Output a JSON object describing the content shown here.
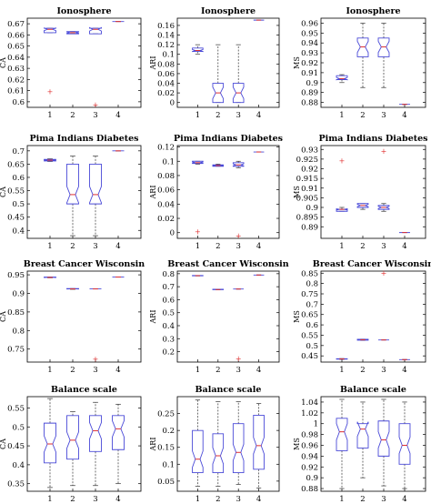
{
  "chart_data": [
    {
      "type": "box",
      "title": "Ionosphere",
      "ylabel": "CA",
      "categories": [
        "1",
        "2",
        "3",
        "4"
      ],
      "ylim": [
        0.595,
        0.675
      ],
      "yticks": [
        0.6,
        0.61,
        0.62,
        0.63,
        0.64,
        0.65,
        0.66,
        0.67
      ],
      "ytick_labels": [
        "0.6",
        "0.61",
        "0.62",
        "0.63",
        "0.64",
        "0.65",
        "0.66",
        "0.67"
      ],
      "boxes": [
        {
          "whislo": 0.662,
          "q1": 0.662,
          "med": 0.665,
          "q3": 0.666,
          "whishi": 0.666,
          "fliers": [
            0.609
          ]
        },
        {
          "whislo": 0.661,
          "q1": 0.661,
          "med": 0.662,
          "q3": 0.663,
          "whishi": 0.663,
          "fliers": []
        },
        {
          "whislo": 0.661,
          "q1": 0.661,
          "med": 0.665,
          "q3": 0.666,
          "whishi": 0.666,
          "fliers": [
            0.597
          ]
        },
        {
          "whislo": 0.672,
          "q1": 0.672,
          "med": 0.672,
          "q3": 0.672,
          "whishi": 0.672,
          "fliers": []
        }
      ]
    },
    {
      "type": "box",
      "title": "Ionosphere",
      "ylabel": "ARI",
      "categories": [
        "1",
        "2",
        "3",
        "4"
      ],
      "ylim": [
        -0.01,
        0.175
      ],
      "yticks": [
        0,
        0.02,
        0.04,
        0.06,
        0.08,
        0.1,
        0.12,
        0.14,
        0.16
      ],
      "ytick_labels": [
        "0",
        "0.02",
        "0.04",
        "0.06",
        "0.08",
        "0.1",
        "0.12",
        "0.14",
        "0.16"
      ],
      "boxes": [
        {
          "whislo": 0.1,
          "q1": 0.106,
          "med": 0.108,
          "q3": 0.113,
          "whishi": 0.12,
          "fliers": []
        },
        {
          "whislo": 0,
          "q1": 0,
          "med": 0.02,
          "q3": 0.04,
          "whishi": 0.12,
          "fliers": []
        },
        {
          "whislo": 0,
          "q1": 0,
          "med": 0.02,
          "q3": 0.04,
          "whishi": 0.12,
          "fliers": []
        },
        {
          "whislo": 0.171,
          "q1": 0.171,
          "med": 0.171,
          "q3": 0.171,
          "whishi": 0.171,
          "fliers": []
        }
      ]
    },
    {
      "type": "box",
      "title": "Ionosphere",
      "ylabel": "MS",
      "categories": [
        "1",
        "2",
        "3",
        "4"
      ],
      "ylim": [
        0.875,
        0.965
      ],
      "yticks": [
        0.88,
        0.89,
        0.9,
        0.91,
        0.92,
        0.93,
        0.94,
        0.95,
        0.96
      ],
      "ytick_labels": [
        "0.88",
        "0.89",
        "0.9",
        "0.91",
        "0.92",
        "0.93",
        "0.94",
        "0.95",
        "0.96"
      ],
      "boxes": [
        {
          "whislo": 0.9,
          "q1": 0.903,
          "med": 0.904,
          "q3": 0.907,
          "whishi": 0.908,
          "fliers": []
        },
        {
          "whislo": 0.895,
          "q1": 0.926,
          "med": 0.936,
          "q3": 0.945,
          "whishi": 0.96,
          "fliers": []
        },
        {
          "whislo": 0.895,
          "q1": 0.926,
          "med": 0.936,
          "q3": 0.945,
          "whishi": 0.96,
          "fliers": []
        },
        {
          "whislo": 0.878,
          "q1": 0.878,
          "med": 0.878,
          "q3": 0.878,
          "whishi": 0.878,
          "fliers": []
        }
      ]
    },
    {
      "type": "box",
      "title": "Pima Indians Diabetes",
      "ylabel": "CA",
      "categories": [
        "1",
        "2",
        "3",
        "4"
      ],
      "ylim": [
        0.37,
        0.72
      ],
      "yticks": [
        0.4,
        0.45,
        0.5,
        0.55,
        0.6,
        0.65,
        0.7
      ],
      "ytick_labels": [
        "0.4",
        "0.45",
        "0.5",
        "0.55",
        "0.6",
        "0.65",
        "0.7"
      ],
      "boxes": [
        {
          "whislo": 0.66,
          "q1": 0.662,
          "med": 0.665,
          "q3": 0.668,
          "whishi": 0.67,
          "fliers": []
        },
        {
          "whislo": 0.38,
          "q1": 0.5,
          "med": 0.535,
          "q3": 0.65,
          "whishi": 0.68,
          "fliers": []
        },
        {
          "whislo": 0.38,
          "q1": 0.5,
          "med": 0.535,
          "q3": 0.65,
          "whishi": 0.68,
          "fliers": []
        },
        {
          "whislo": 0.7,
          "q1": 0.7,
          "med": 0.7,
          "q3": 0.7,
          "whishi": 0.7,
          "fliers": []
        }
      ]
    },
    {
      "type": "box",
      "title": "Pima Indians Diabetes",
      "ylabel": "ARI",
      "categories": [
        "1",
        "2",
        "3",
        "4"
      ],
      "ylim": [
        -0.008,
        0.122
      ],
      "yticks": [
        0,
        0.02,
        0.04,
        0.06,
        0.08,
        0.1,
        0.12
      ],
      "ytick_labels": [
        "0",
        "0.02",
        "0.04",
        "0.06",
        "0.08",
        "0.1",
        "0.12"
      ],
      "boxes": [
        {
          "whislo": 0.096,
          "q1": 0.097,
          "med": 0.098,
          "q3": 0.1,
          "whishi": 0.1,
          "fliers": [
            0.001
          ]
        },
        {
          "whislo": 0.093,
          "q1": 0.093,
          "med": 0.094,
          "q3": 0.095,
          "whishi": 0.096,
          "fliers": []
        },
        {
          "whislo": 0.091,
          "q1": 0.093,
          "med": 0.095,
          "q3": 0.098,
          "whishi": 0.1,
          "fliers": [
            -0.005
          ]
        },
        {
          "whislo": 0.113,
          "q1": 0.113,
          "med": 0.113,
          "q3": 0.113,
          "whishi": 0.113,
          "fliers": []
        }
      ]
    },
    {
      "type": "box",
      "title": "Pima Indians Diabetes",
      "ylabel": "MS",
      "categories": [
        "1",
        "2",
        "3",
        "4"
      ],
      "ylim": [
        0.884,
        0.932
      ],
      "yticks": [
        0.89,
        0.895,
        0.9,
        0.905,
        0.91,
        0.915,
        0.92,
        0.925,
        0.93
      ],
      "ytick_labels": [
        "0.89",
        "0.895",
        "0.9",
        "0.905",
        "0.91",
        "0.915",
        "0.92",
        "0.925",
        "0.93"
      ],
      "boxes": [
        {
          "whislo": 0.898,
          "q1": 0.898,
          "med": 0.899,
          "q3": 0.899,
          "whishi": 0.9,
          "fliers": [
            0.924
          ]
        },
        {
          "whislo": 0.899,
          "q1": 0.9,
          "med": 0.901,
          "q3": 0.902,
          "whishi": 0.902,
          "fliers": []
        },
        {
          "whislo": 0.898,
          "q1": 0.899,
          "med": 0.9,
          "q3": 0.901,
          "whishi": 0.902,
          "fliers": [
            0.929
          ]
        },
        {
          "whislo": 0.887,
          "q1": 0.887,
          "med": 0.887,
          "q3": 0.887,
          "whishi": 0.887,
          "fliers": []
        }
      ]
    },
    {
      "type": "box",
      "title": "Breast Cancer Wisconsin",
      "ylabel": "CA",
      "categories": [
        "1",
        "2",
        "3",
        "4"
      ],
      "ylim": [
        0.715,
        0.96
      ],
      "yticks": [
        0.75,
        0.8,
        0.85,
        0.9,
        0.95
      ],
      "ytick_labels": [
        "0.75",
        "0.8",
        "0.85",
        "0.9",
        "0.95"
      ],
      "boxes": [
        {
          "whislo": 0.942,
          "q1": 0.943,
          "med": 0.943,
          "q3": 0.944,
          "whishi": 0.944,
          "fliers": []
        },
        {
          "whislo": 0.911,
          "q1": 0.912,
          "med": 0.912,
          "q3": 0.913,
          "whishi": 0.913,
          "fliers": []
        },
        {
          "whislo": 0.912,
          "q1": 0.912,
          "med": 0.912,
          "q3": 0.912,
          "whishi": 0.912,
          "fliers": [
            0.722
          ]
        },
        {
          "whislo": 0.944,
          "q1": 0.944,
          "med": 0.944,
          "q3": 0.944,
          "whishi": 0.944,
          "fliers": []
        }
      ]
    },
    {
      "type": "box",
      "title": "Breast Cancer Wisconsin",
      "ylabel": "ARI",
      "categories": [
        "1",
        "2",
        "3",
        "4"
      ],
      "ylim": [
        0.12,
        0.82
      ],
      "yticks": [
        0.2,
        0.3,
        0.4,
        0.5,
        0.6,
        0.7,
        0.8
      ],
      "ytick_labels": [
        "0.2",
        "0.3",
        "0.4",
        "0.5",
        "0.6",
        "0.7",
        "0.8"
      ],
      "boxes": [
        {
          "whislo": 0.783,
          "q1": 0.784,
          "med": 0.785,
          "q3": 0.786,
          "whishi": 0.786,
          "fliers": []
        },
        {
          "whislo": 0.676,
          "q1": 0.677,
          "med": 0.678,
          "q3": 0.68,
          "whishi": 0.681,
          "fliers": []
        },
        {
          "whislo": 0.682,
          "q1": 0.682,
          "med": 0.682,
          "q3": 0.682,
          "whishi": 0.682,
          "fliers": [
            0.145
          ]
        },
        {
          "whislo": 0.79,
          "q1": 0.79,
          "med": 0.79,
          "q3": 0.79,
          "whishi": 0.79,
          "fliers": []
        }
      ]
    },
    {
      "type": "box",
      "title": "Breast Cancer Wisconsin",
      "ylabel": "MS",
      "categories": [
        "1",
        "2",
        "3",
        "4"
      ],
      "ylim": [
        0.42,
        0.86
      ],
      "yticks": [
        0.45,
        0.5,
        0.55,
        0.6,
        0.65,
        0.7,
        0.75,
        0.8,
        0.85
      ],
      "ytick_labels": [
        "0.45",
        "0.5",
        "0.55",
        "0.6",
        "0.65",
        "0.7",
        "0.75",
        "0.8",
        "0.85"
      ],
      "boxes": [
        {
          "whislo": 0.433,
          "q1": 0.434,
          "med": 0.435,
          "q3": 0.436,
          "whishi": 0.437,
          "fliers": []
        },
        {
          "whislo": 0.525,
          "q1": 0.526,
          "med": 0.528,
          "q3": 0.53,
          "whishi": 0.531,
          "fliers": []
        },
        {
          "whislo": 0.527,
          "q1": 0.527,
          "med": 0.527,
          "q3": 0.527,
          "whishi": 0.527,
          "fliers": [
            0.848
          ]
        },
        {
          "whislo": 0.432,
          "q1": 0.432,
          "med": 0.432,
          "q3": 0.432,
          "whishi": 0.432,
          "fliers": []
        }
      ]
    },
    {
      "type": "box",
      "title": "Balance scale",
      "ylabel": "CA",
      "categories": [
        "1",
        "2",
        "3",
        "4"
      ],
      "ylim": [
        0.33,
        0.58
      ],
      "yticks": [
        0.35,
        0.4,
        0.45,
        0.5,
        0.55
      ],
      "ytick_labels": [
        "0.35",
        "0.4",
        "0.45",
        "0.5",
        "0.55"
      ],
      "boxes": [
        {
          "whislo": 0.34,
          "q1": 0.405,
          "med": 0.455,
          "q3": 0.51,
          "whishi": 0.575,
          "fliers": []
        },
        {
          "whislo": 0.345,
          "q1": 0.415,
          "med": 0.465,
          "q3": 0.53,
          "whishi": 0.54,
          "fliers": []
        },
        {
          "whislo": 0.345,
          "q1": 0.435,
          "med": 0.49,
          "q3": 0.53,
          "whishi": 0.565,
          "fliers": []
        },
        {
          "whislo": 0.35,
          "q1": 0.44,
          "med": 0.495,
          "q3": 0.53,
          "whishi": 0.56,
          "fliers": []
        }
      ]
    },
    {
      "type": "box",
      "title": "Balance scale",
      "ylabel": "ARI",
      "categories": [
        "1",
        "2",
        "3",
        "4"
      ],
      "ylim": [
        0.02,
        0.3
      ],
      "yticks": [
        0.05,
        0.1,
        0.15,
        0.2,
        0.25
      ],
      "ytick_labels": [
        "0.05",
        "0.1",
        "0.15",
        "0.2",
        "0.25"
      ],
      "boxes": [
        {
          "whislo": 0.035,
          "q1": 0.075,
          "med": 0.115,
          "q3": 0.2,
          "whishi": 0.29,
          "fliers": []
        },
        {
          "whislo": 0.035,
          "q1": 0.075,
          "med": 0.125,
          "q3": 0.19,
          "whishi": 0.285,
          "fliers": []
        },
        {
          "whislo": 0.04,
          "q1": 0.075,
          "med": 0.135,
          "q3": 0.22,
          "whishi": 0.285,
          "fliers": []
        },
        {
          "whislo": 0.03,
          "q1": 0.085,
          "med": 0.155,
          "q3": 0.245,
          "whishi": 0.28,
          "fliers": []
        }
      ]
    },
    {
      "type": "box",
      "title": "Balance scale",
      "ylabel": "MS",
      "categories": [
        "1",
        "2",
        "3",
        "4"
      ],
      "ylim": [
        0.875,
        1.05
      ],
      "yticks": [
        0.88,
        0.9,
        0.92,
        0.94,
        0.96,
        0.98,
        1,
        1.02,
        1.04
      ],
      "ytick_labels": [
        "0.88",
        "0.9",
        "0.92",
        "0.94",
        "0.96",
        "0.98",
        "1",
        "1.02",
        "1.04"
      ],
      "boxes": [
        {
          "whislo": 0.88,
          "q1": 0.95,
          "med": 0.985,
          "q3": 1.01,
          "whishi": 1.045,
          "fliers": []
        },
        {
          "whislo": 0.9,
          "q1": 0.955,
          "med": 0.99,
          "q3": 1.0,
          "whishi": 1.04,
          "fliers": []
        },
        {
          "whislo": 0.885,
          "q1": 0.94,
          "med": 0.97,
          "q3": 1.005,
          "whishi": 1.045,
          "fliers": []
        },
        {
          "whislo": 0.88,
          "q1": 0.925,
          "med": 0.96,
          "q3": 1.0,
          "whishi": 1.04,
          "fliers": []
        }
      ]
    }
  ],
  "colors": {
    "box": "#4a4ad8",
    "median": "#e03030",
    "whisker": "#333333",
    "flier": "#e03030",
    "axis": "#000000"
  }
}
